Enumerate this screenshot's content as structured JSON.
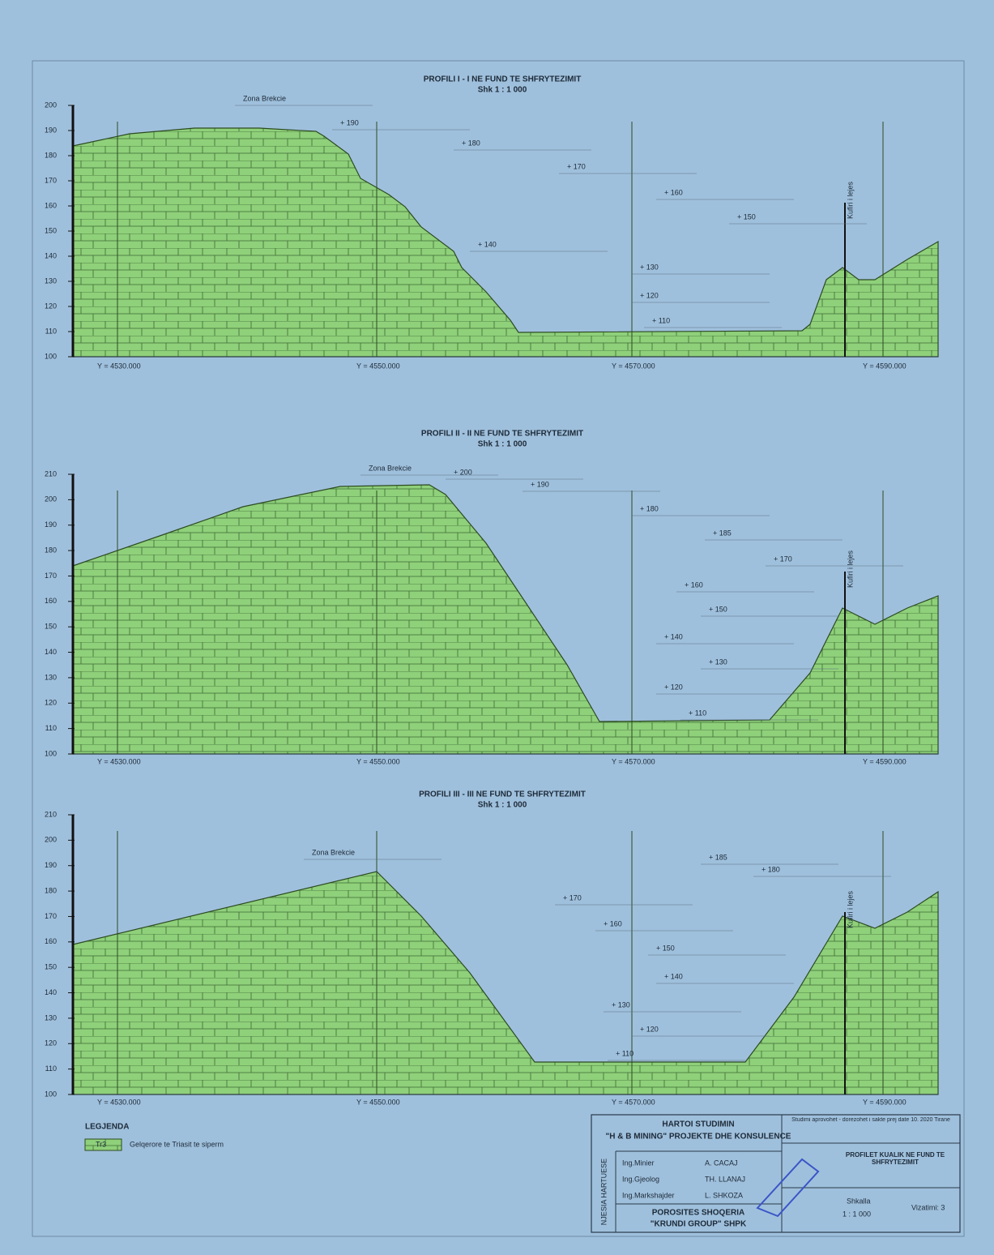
{
  "profiles": [
    {
      "title": "PROFILI I - I NE FUND TE SHFRYTEZIMIT",
      "scale": "Shk 1 : 1 000",
      "yticks": [
        "100",
        "110",
        "120",
        "130",
        "140",
        "150",
        "160",
        "170",
        "180",
        "190",
        "200"
      ],
      "stations": [
        "Y = 4530.000",
        "Y = 4550.000",
        "Y = 4570.000",
        "Y = 4590.000"
      ],
      "boundary_label": "Kufiri i lejes",
      "annotations": [
        "Zona Brekcie",
        "+ 190",
        "+ 180",
        "+ 170",
        "+ 160",
        "+ 150",
        "+ 140",
        "+ 130",
        "+ 120",
        "+ 110"
      ]
    },
    {
      "title": "PROFILI II - II NE FUND TE SHFRYTEZIMIT",
      "scale": "Shk 1 : 1 000",
      "yticks": [
        "100",
        "110",
        "120",
        "130",
        "140",
        "150",
        "160",
        "170",
        "180",
        "190",
        "200",
        "210"
      ],
      "stations": [
        "Y = 4530.000",
        "Y = 4550.000",
        "Y = 4570.000",
        "Y = 4590.000"
      ],
      "boundary_label": "Kufiri i lejes",
      "annotations": [
        "Zona Brekcie",
        "+ 200",
        "+ 190",
        "+ 180",
        "+ 185",
        "+ 170",
        "+ 160",
        "+ 150",
        "+ 140",
        "+ 130",
        "+ 120",
        "+ 110"
      ]
    },
    {
      "title": "PROFILI III - III NE FUND TE SHFRYTEZIMIT",
      "scale": "Shk 1 : 1 000",
      "yticks": [
        "100",
        "110",
        "120",
        "130",
        "140",
        "150",
        "160",
        "170",
        "180",
        "190",
        "200",
        "210"
      ],
      "stations": [
        "Y = 4530.000",
        "Y = 4550.000",
        "Y = 4570.000",
        "Y = 4590.000"
      ],
      "boundary_label": "Kufiri i lejes",
      "annotations": [
        "Zona Brekcie",
        "+ 185",
        "+ 180",
        "+ 170",
        "+ 160",
        "+ 150",
        "+ 140",
        "+ 130",
        "+ 120",
        "+ 110"
      ]
    }
  ],
  "legend": {
    "title": "LEGJENDA",
    "symbol": "Tr3",
    "description": "Gelqerore te Triasit te siperm"
  },
  "title_block": {
    "heading": "HARTOI STUDIMIN",
    "company": "\"H & B MINING\" PROJEKTE DHE KONSULENCE",
    "rows": [
      [
        "Ing.Minier",
        "A. CACAJ"
      ],
      [
        "Ing.Gjeolog",
        "TH. LLANAJ"
      ],
      [
        "Ing.Markshajder",
        "L. SHKOZA"
      ]
    ],
    "side_label": "NJESIA HARTUESE",
    "client_label": "POROSITES SHOQERIA",
    "client": "\"KRUNDI GROUP\" SHPK",
    "note": "Studimi aprovohet - dorezohet i sakte prej date 10. 2020 Tirane",
    "drawing_title": "PROFILET KUALIK NE FUND TE SHFRYTEZIMIT",
    "scale_label": "Shkalla",
    "scale": "1 : 1 000",
    "sheet": "Vizatimi: 3"
  }
}
